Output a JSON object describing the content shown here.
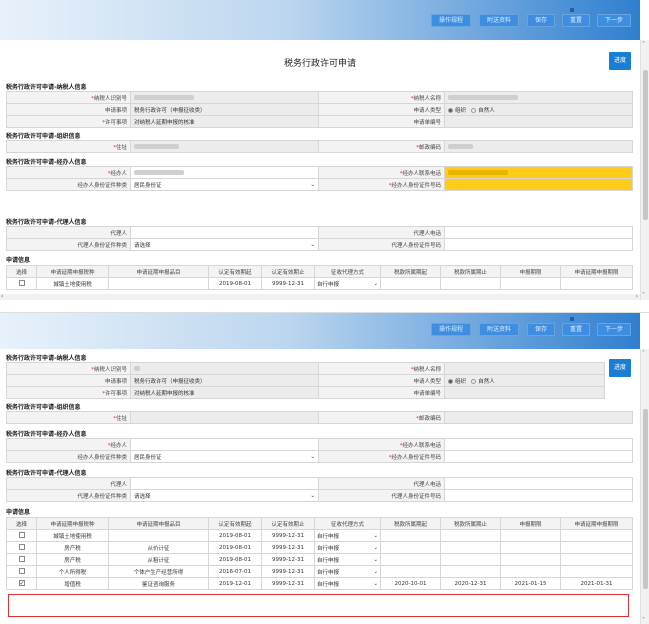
{
  "toolbar": {
    "buttons": [
      "操作规程",
      "附送资料",
      "保存",
      "重置",
      "下一步"
    ]
  },
  "page_title": "税务行政许可申请",
  "progress_label": "进度",
  "sections": {
    "taxpayer": "税务行政许可申请-纳税人信息",
    "org": "税务行政许可申请-组织信息",
    "handler": "税务行政许可申请-经办人信息",
    "agent": "税务行政许可申请-代理人信息",
    "apply": "申请信息"
  },
  "taxpayer": {
    "id_label": "纳税人识别号",
    "name_label": "纳税人名称",
    "matter_label": "申请事项",
    "matter_value": "税务行政许可（申报征收类）",
    "type_label": "申请人类型",
    "type_options": [
      "组织",
      "自然人"
    ],
    "item_label": "许可事项",
    "item_value": "对纳税人延期申报的核准",
    "doc_label": "申请单编号"
  },
  "org": {
    "addr_label": "住址",
    "zip_label": "邮政编码"
  },
  "handler": {
    "name_label": "经办人",
    "phone_label": "经办人联系电话",
    "idtype_label": "经办人身份证件种类",
    "idtype_value": "居民身份证",
    "idno_label": "经办人身份证件号码"
  },
  "agent": {
    "name_label": "代理人",
    "phone_label": "代理人电话",
    "idtype_label": "代理人身份证件种类",
    "idtype_value": "请选择",
    "idno_label": "代理人身份证件号码"
  },
  "grid": {
    "headers": [
      "选择",
      "申请延期申报税种",
      "申请延期申报品目",
      "认定有效期起",
      "认定有效期止",
      "征收代理方式",
      "税款所属期起",
      "税款所属期止",
      "申报期限",
      "申请延期申报期限"
    ],
    "rows_top": [
      {
        "tax": "城镇土地使用税",
        "item": "",
        "start": "2019-08-01",
        "end": "9999-12-31",
        "mode": "自行申报"
      }
    ],
    "rows_bottom": [
      {
        "checked": false,
        "tax": "城镇土地使用税",
        "item": "",
        "start": "2019-08-01",
        "end": "9999-12-31",
        "mode": "自行申报",
        "p_start": "",
        "p_end": "",
        "deadline": "",
        "ext": ""
      },
      {
        "checked": false,
        "tax": "房产税",
        "item": "从价计征",
        "start": "2019-08-01",
        "end": "9999-12-31",
        "mode": "自行申报",
        "p_start": "",
        "p_end": "",
        "deadline": "",
        "ext": ""
      },
      {
        "checked": false,
        "tax": "房产税",
        "item": "从租计征",
        "start": "2019-08-01",
        "end": "9999-12-31",
        "mode": "自行申报",
        "p_start": "",
        "p_end": "",
        "deadline": "",
        "ext": ""
      },
      {
        "checked": false,
        "tax": "个人所得税",
        "item": "个体户生产经营所得",
        "start": "2016-07-01",
        "end": "9999-12-31",
        "mode": "自行申报",
        "p_start": "",
        "p_end": "",
        "deadline": "",
        "ext": ""
      },
      {
        "checked": true,
        "tax": "增值税",
        "item": "鉴证咨询服务",
        "start": "2019-12-01",
        "end": "9999-12-31",
        "mode": "自行申报",
        "p_start": "2020-10-01",
        "p_end": "2020-12-31",
        "deadline": "2021-01-15",
        "ext": "2021-01-31"
      }
    ]
  },
  "colors": {
    "accent": "#2f7fd0",
    "highlight_field": "#ffcc1a",
    "annotation_box": "#dd3333"
  }
}
